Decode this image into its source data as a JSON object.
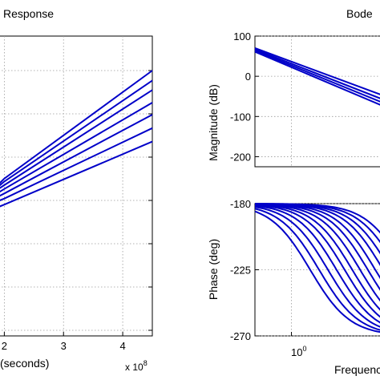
{
  "chart_data": [
    {
      "type": "line",
      "title": "Response",
      "xlabel": "(seconds)",
      "ylabel": "",
      "x_exponent_label": "x 10",
      "x_exponent_power": "8",
      "xlim": [
        1.9,
        4.5
      ],
      "ylim": [
        0,
        1
      ],
      "x_ticks": [
        2,
        3,
        4
      ],
      "y_ticks": [],
      "grid": true,
      "series": [
        {
          "x": [
            1.9,
            2.0,
            4.5
          ],
          "y": [
            0.505,
            0.525,
            0.885
          ]
        },
        {
          "x": [
            1.9,
            2.0,
            4.5
          ],
          "y": [
            0.498,
            0.515,
            0.852
          ]
        },
        {
          "x": [
            1.9,
            2.0,
            4.5
          ],
          "y": [
            0.49,
            0.503,
            0.82
          ]
        },
        {
          "x": [
            1.9,
            2.0,
            4.5
          ],
          "y": [
            0.478,
            0.49,
            0.778
          ]
        },
        {
          "x": [
            1.9,
            2.0,
            4.5
          ],
          "y": [
            0.465,
            0.475,
            0.738
          ]
        },
        {
          "x": [
            1.9,
            2.0,
            4.5
          ],
          "y": [
            0.45,
            0.458,
            0.693
          ]
        },
        {
          "x": [
            1.9,
            2.0,
            4.5
          ],
          "y": [
            0.43,
            0.438,
            0.648
          ]
        }
      ]
    },
    {
      "type": "line",
      "title": "Bode",
      "xlabel": "",
      "ylabel": "Magnitude (dB)",
      "x_scale": "log",
      "xlim": [
        0.4,
        10
      ],
      "ylim": [
        -225,
        100
      ],
      "y_ticks": [
        100,
        0,
        -100,
        -200
      ],
      "grid": true,
      "series": [
        {
          "x": [
            0.4,
            10
          ],
          "y": [
            70,
            -48
          ]
        },
        {
          "x": [
            0.4,
            10
          ],
          "y": [
            67,
            -58
          ]
        },
        {
          "x": [
            0.4,
            10
          ],
          "y": [
            64,
            -66
          ]
        },
        {
          "x": [
            0.4,
            10
          ],
          "y": [
            61,
            -74
          ]
        }
      ]
    },
    {
      "type": "line",
      "title": "",
      "xlabel": "Frequency",
      "ylabel": "Phase (deg)",
      "x_scale": "log",
      "xlim": [
        0.4,
        10
      ],
      "ylim": [
        -270,
        -180
      ],
      "x_ticks": [
        1
      ],
      "x_tick_labels": [
        "10",
        "0"
      ],
      "y_ticks": [
        -180,
        -225,
        -270
      ],
      "grid": true,
      "series_corners": [
        1.6,
        2.0,
        2.5,
        3.1,
        3.8,
        4.6,
        5.6,
        6.8,
        8.2,
        10,
        12,
        14.5,
        17.5
      ]
    }
  ]
}
